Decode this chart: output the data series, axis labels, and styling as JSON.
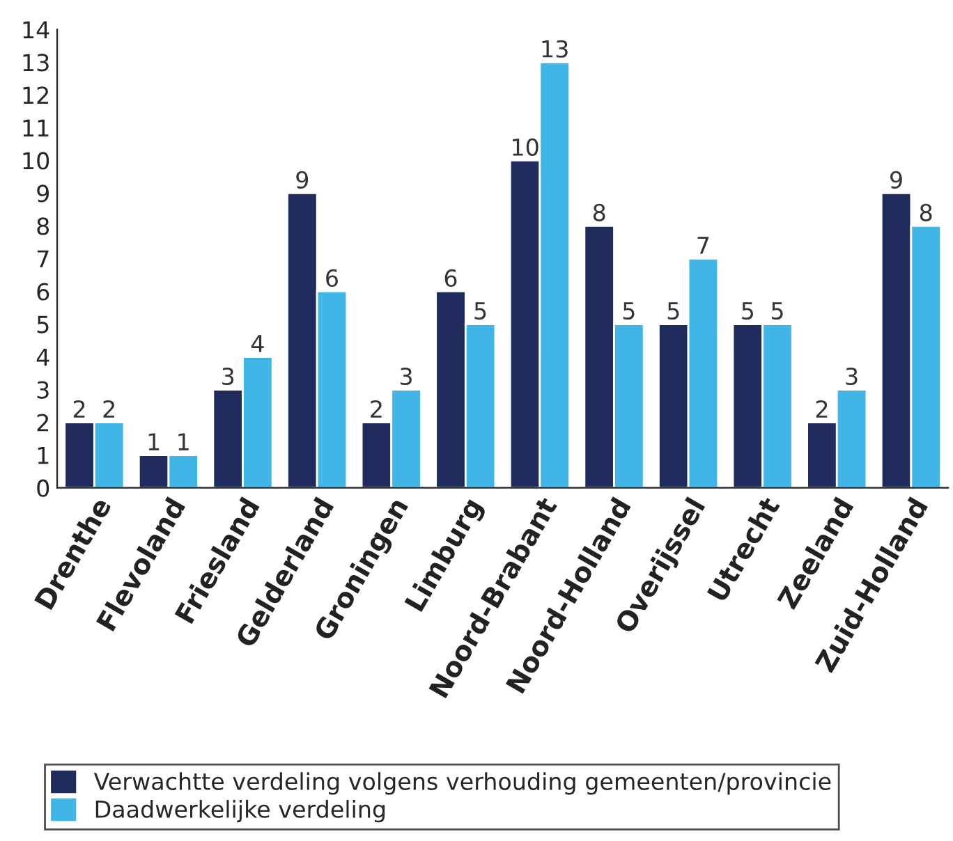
{
  "chart_data": {
    "type": "bar",
    "categories": [
      "Drenthe",
      "Flevoland",
      "Friesland",
      "Gelderland",
      "Groningen",
      "Limburg",
      "Noord-Brabant",
      "Noord-Holland",
      "Overijssel",
      "Utrecht",
      "Zeeland",
      "Zuid-Holland"
    ],
    "series": [
      {
        "name": "Verwachtte verdeling volgens verhouding gemeenten/provincie",
        "color": "#1f2b5b",
        "values": [
          2,
          1,
          3,
          9,
          2,
          6,
          10,
          8,
          5,
          5,
          2,
          9
        ]
      },
      {
        "name": "Daadwerkelijke verdeling",
        "color": "#41b6e6",
        "values": [
          2,
          1,
          4,
          6,
          3,
          5,
          13,
          5,
          7,
          5,
          3,
          8
        ]
      }
    ],
    "ylim": [
      0,
      14
    ],
    "yticks": [
      0,
      1,
      2,
      3,
      4,
      5,
      6,
      7,
      8,
      9,
      10,
      11,
      12,
      13,
      14
    ],
    "data_labels": true,
    "grid": false,
    "legend": "bottom"
  }
}
